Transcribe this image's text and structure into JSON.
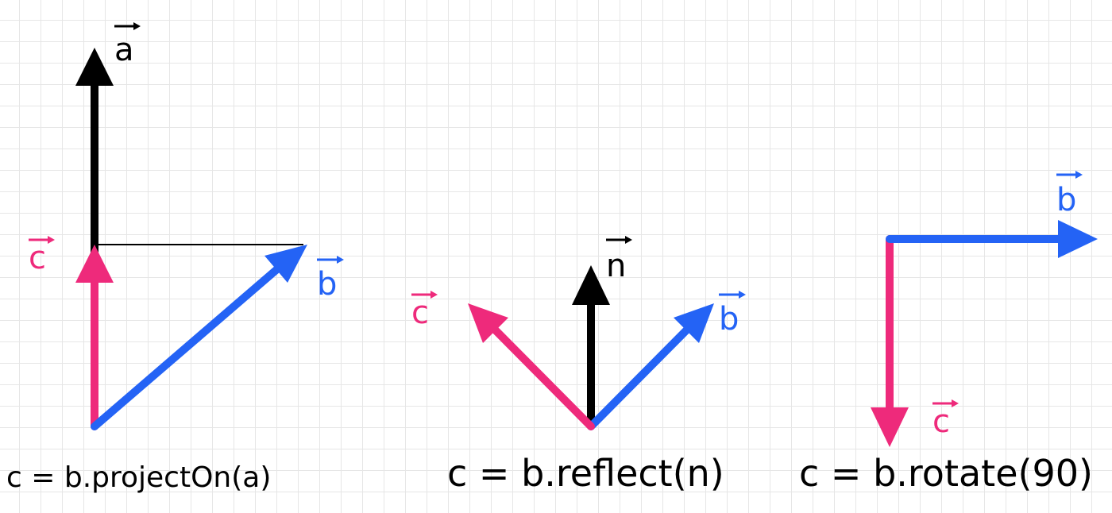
{
  "colors": {
    "black": "#000000",
    "pink": "#ee2a7b",
    "blue": "#2463f5",
    "grid": "#e6e6e6"
  },
  "panels": [
    {
      "caption": "c = b.projectOn(a)",
      "labels": {
        "a": "a",
        "b": "b",
        "c": "c"
      }
    },
    {
      "caption": "c = b.reflect(n)",
      "labels": {
        "n": "n",
        "b": "b",
        "c": "c"
      }
    },
    {
      "caption": "c = b.rotate(90)",
      "labels": {
        "b": "b",
        "c": "c"
      }
    }
  ]
}
